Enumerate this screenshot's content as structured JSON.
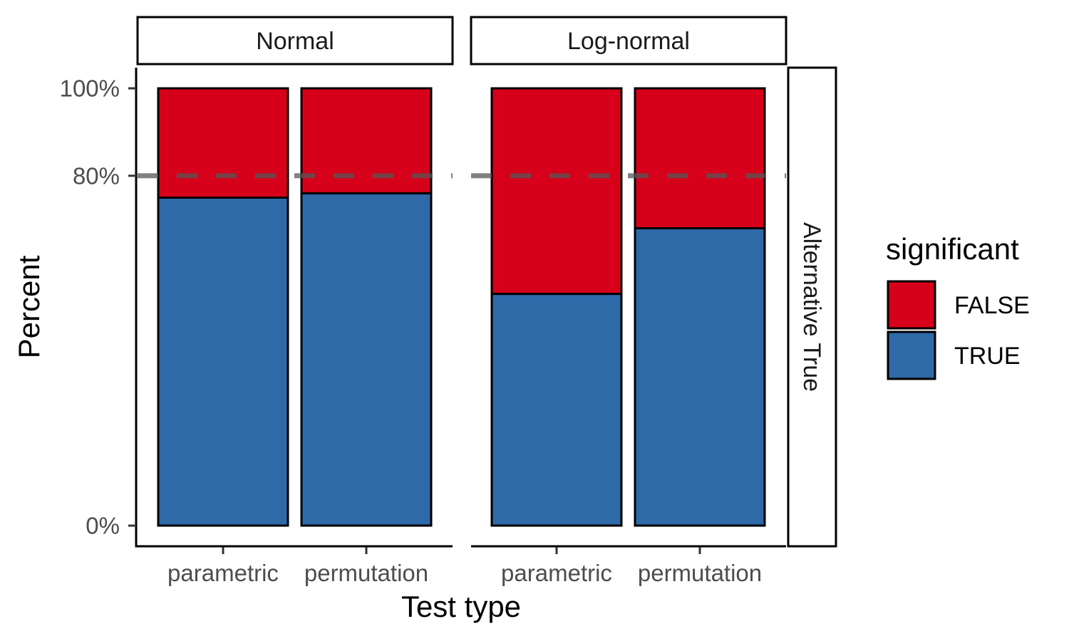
{
  "chart_data": {
    "type": "bar",
    "stacked": true,
    "facets": [
      {
        "name": "Normal",
        "categories": [
          "parametric",
          "permutation"
        ],
        "series": [
          {
            "name": "FALSE",
            "values": [
              25,
              24
            ]
          },
          {
            "name": "TRUE",
            "values": [
              75,
              76
            ]
          }
        ]
      },
      {
        "name": "Log-normal",
        "categories": [
          "parametric",
          "permutation"
        ],
        "series": [
          {
            "name": "FALSE",
            "values": [
              47,
              32
            ]
          },
          {
            "name": "TRUE",
            "values": [
              53,
              68
            ]
          }
        ]
      }
    ],
    "row_facet_label": "Alternative True",
    "xlabel": "Test type",
    "ylabel": "Percent",
    "ylim": [
      0,
      100
    ],
    "y_ticks": [
      0,
      80,
      100
    ],
    "y_tick_labels": [
      "0%",
      "80%",
      "100%"
    ],
    "reference_line": {
      "y": 80,
      "style": "dashed",
      "color": "#555555"
    },
    "legend": {
      "title": "significant",
      "position": "right",
      "entries": [
        {
          "label": "FALSE",
          "color": "#D7001A"
        },
        {
          "label": "TRUE",
          "color": "#2E69A8"
        }
      ]
    },
    "colors": {
      "FALSE": "#D7001A",
      "TRUE": "#2E69A8"
    }
  }
}
